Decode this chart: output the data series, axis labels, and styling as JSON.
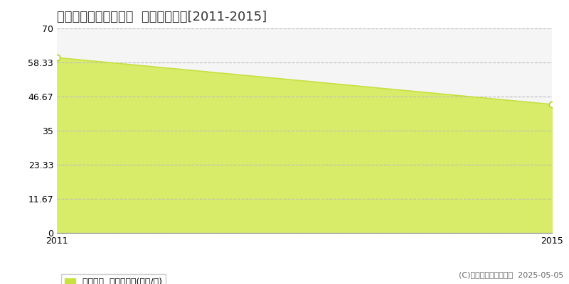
{
  "title": "新潟市中央区医学町通  土地価格推移[2011-2015]",
  "years": [
    2011,
    2015
  ],
  "values": [
    60.0,
    44.0
  ],
  "ylim": [
    0,
    70
  ],
  "yticks": [
    0,
    11.67,
    23.33,
    35,
    46.67,
    58.33,
    70
  ],
  "ytick_labels": [
    "0",
    "11.67",
    "23.33",
    "35",
    "46.67",
    "58.33",
    "70"
  ],
  "xlim": [
    2011,
    2015
  ],
  "xticks": [
    2011,
    2015
  ],
  "line_color": "#c8e040",
  "fill_color": "#d8ec6a",
  "fill_alpha": 1.0,
  "marker_color": "white",
  "marker_edge_color": "#b8d020",
  "marker_size": 6,
  "grid_color": "#bbbbbb",
  "bg_color": "#f5f5f5",
  "legend_label": "土地価格  平均坪単価(万円/坪)",
  "legend_color": "#c8e040",
  "copyright_text": "(C)土地価格ドットコム  2025-05-05",
  "title_fontsize": 13,
  "tick_fontsize": 9,
  "legend_fontsize": 9,
  "copyright_fontsize": 8
}
